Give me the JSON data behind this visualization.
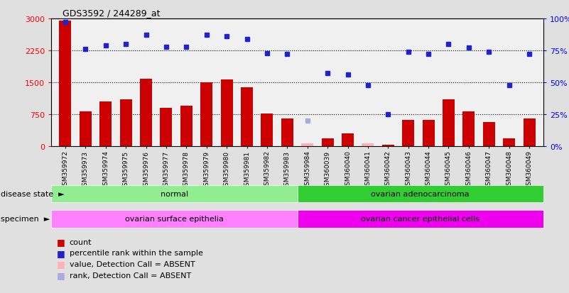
{
  "title": "GDS3592 / 244289_at",
  "samples": [
    "GSM359972",
    "GSM359973",
    "GSM359974",
    "GSM359975",
    "GSM359976",
    "GSM359977",
    "GSM359978",
    "GSM359979",
    "GSM359980",
    "GSM359981",
    "GSM359982",
    "GSM359983",
    "GSM359984",
    "GSM360039",
    "GSM360040",
    "GSM360041",
    "GSM360042",
    "GSM360043",
    "GSM360044",
    "GSM360045",
    "GSM360046",
    "GSM360047",
    "GSM360048",
    "GSM360049"
  ],
  "count_values": [
    2950,
    820,
    1050,
    1100,
    1580,
    900,
    950,
    1500,
    1560,
    1380,
    760,
    650,
    60,
    180,
    300,
    70,
    30,
    620,
    620,
    1100,
    820,
    570,
    180,
    650
  ],
  "count_absent": [
    false,
    false,
    false,
    false,
    false,
    false,
    false,
    false,
    false,
    false,
    false,
    false,
    true,
    false,
    false,
    true,
    false,
    false,
    false,
    false,
    false,
    false,
    false,
    false
  ],
  "percentile_values": [
    97,
    76,
    79,
    80,
    87,
    78,
    78,
    87,
    86,
    84,
    73,
    72,
    20,
    57,
    56,
    48,
    25,
    74,
    72,
    80,
    77,
    74,
    48,
    72
  ],
  "percentile_absent": [
    false,
    false,
    false,
    false,
    false,
    false,
    false,
    false,
    false,
    false,
    false,
    false,
    true,
    false,
    false,
    false,
    false,
    false,
    false,
    false,
    false,
    false,
    false,
    false
  ],
  "disease_state_groups": [
    {
      "label": "normal",
      "start": 0,
      "end": 12,
      "color": "#90EE90"
    },
    {
      "label": "ovarian adenocarcinoma",
      "start": 12,
      "end": 24,
      "color": "#32CD32"
    }
  ],
  "specimen_groups": [
    {
      "label": "ovarian surface epithelia",
      "start": 0,
      "end": 12,
      "color": "#FF80FF"
    },
    {
      "label": "ovarian cancer epithelial cells",
      "start": 12,
      "end": 24,
      "color": "#EE00EE"
    }
  ],
  "left_ylim": [
    0,
    3000
  ],
  "right_ylim": [
    0,
    100
  ],
  "left_yticks": [
    0,
    750,
    1500,
    2250,
    3000
  ],
  "right_yticks": [
    0,
    25,
    50,
    75,
    100
  ],
  "left_yticklabels": [
    "0",
    "750",
    "1500",
    "2250",
    "3000"
  ],
  "right_yticklabels": [
    "0%",
    "25%",
    "50%",
    "75%",
    "100%"
  ],
  "hlines": [
    750,
    1500,
    2250
  ],
  "bar_color_normal": "#CC0000",
  "bar_color_absent": "#FFB0B8",
  "dot_color_normal": "#2222CC",
  "dot_color_absent": "#AAAADD",
  "legend_items": [
    {
      "marker": "s",
      "color": "#CC0000",
      "label": "count"
    },
    {
      "marker": "s",
      "color": "#2222CC",
      "label": "percentile rank within the sample"
    },
    {
      "marker": "s",
      "color": "#FFB0B8",
      "label": "value, Detection Call = ABSENT"
    },
    {
      "marker": "s",
      "color": "#AAAADD",
      "label": "rank, Detection Call = ABSENT"
    }
  ],
  "fig_bg": "#E0E0E0",
  "plot_bg": "#F0F0F0"
}
